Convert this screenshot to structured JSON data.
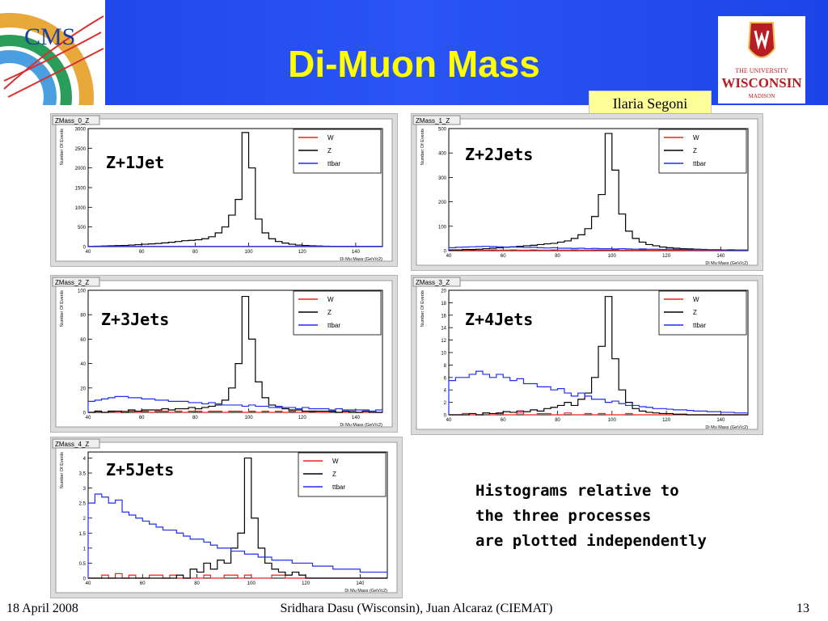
{
  "slide": {
    "title": "Di-Muon Mass",
    "author": "Ilaria Segoni",
    "note_lines": [
      "Histograms relative to",
      "the three processes",
      "are plotted independently"
    ],
    "footer": {
      "date": "18 April 2008",
      "center": "Sridhara Dasu (Wisconsin), Juan Alcaraz (CIEMAT)",
      "page": "13"
    },
    "logos": {
      "cms_text": "CMS",
      "wisconsin": [
        "THE UNIVERSITY",
        "WISCONSIN",
        "MADISON"
      ]
    },
    "colors": {
      "banner": "#2a55f4",
      "title": "#ffff00",
      "author_box": "#ffff99",
      "W": "#e8231f",
      "Z": "#000000",
      "ttbar": "#1f2ff0"
    }
  },
  "chart_data": [
    {
      "type": "histogram",
      "panel_title": "ZMass_0_Z",
      "label": "Z+1Jet",
      "xlabel": "Di Mu Mass (GeV/c2)",
      "ylabel": "Number Of Events",
      "xlim": [
        40,
        150
      ],
      "ylim": [
        0,
        3000
      ],
      "x_ticks": [
        40,
        60,
        80,
        100,
        120,
        140
      ],
      "y_ticks": [
        0,
        500,
        1000,
        1500,
        2000,
        2500,
        3000
      ],
      "legend": [
        "W",
        "Z",
        "ttbar"
      ],
      "bins": {
        "start": 40,
        "width": 2.5
      },
      "series": [
        {
          "name": "W",
          "values": [
            0,
            0,
            0,
            0,
            0,
            0,
            0,
            0,
            0,
            0,
            0,
            0,
            0,
            0,
            0,
            0,
            0,
            0,
            0,
            0,
            0,
            0,
            0,
            0,
            0,
            0,
            0,
            0,
            0,
            0,
            0,
            0,
            0,
            0,
            0,
            0,
            0,
            0,
            0,
            0,
            0,
            0,
            0,
            0
          ]
        },
        {
          "name": "Z",
          "values": [
            5,
            10,
            15,
            20,
            25,
            30,
            40,
            50,
            60,
            70,
            80,
            95,
            110,
            130,
            150,
            160,
            175,
            200,
            250,
            350,
            500,
            800,
            1200,
            2900,
            2000,
            700,
            350,
            200,
            130,
            90,
            60,
            40,
            30,
            20,
            15,
            10,
            8,
            5,
            5,
            5,
            5,
            5,
            5,
            5
          ]
        },
        {
          "name": "ttbar",
          "values": [
            5,
            5,
            5,
            5,
            5,
            5,
            5,
            5,
            5,
            5,
            5,
            5,
            5,
            5,
            5,
            5,
            5,
            5,
            5,
            5,
            5,
            5,
            5,
            5,
            5,
            5,
            5,
            5,
            5,
            5,
            5,
            5,
            5,
            5,
            5,
            5,
            5,
            5,
            5,
            5,
            5,
            5,
            5,
            5
          ]
        }
      ]
    },
    {
      "type": "histogram",
      "panel_title": "ZMass_1_Z",
      "label": "Z+2Jets",
      "xlabel": "Di Mu Mass (GeV/c2)",
      "ylabel": "Number Of Events",
      "xlim": [
        40,
        150
      ],
      "ylim": [
        0,
        500
      ],
      "x_ticks": [
        40,
        60,
        80,
        100,
        120,
        140
      ],
      "y_ticks": [
        0,
        100,
        200,
        300,
        400,
        500
      ],
      "legend": [
        "W",
        "Z",
        "ttbar"
      ],
      "bins": {
        "start": 40,
        "width": 2.5
      },
      "series": [
        {
          "name": "W",
          "values": [
            2,
            2,
            2,
            3,
            2,
            2,
            3,
            2,
            2,
            3,
            2,
            2,
            3,
            2,
            2,
            3,
            2,
            2,
            3,
            2,
            2,
            3,
            3,
            3,
            3,
            2,
            2,
            2,
            3,
            2,
            2,
            2,
            2,
            2,
            2,
            2,
            2,
            2,
            2,
            2,
            2,
            2,
            2,
            2
          ]
        },
        {
          "name": "Z",
          "values": [
            3,
            3,
            5,
            5,
            6,
            8,
            10,
            12,
            14,
            16,
            18,
            20,
            22,
            25,
            28,
            30,
            35,
            40,
            50,
            65,
            90,
            140,
            230,
            480,
            330,
            150,
            80,
            50,
            35,
            25,
            20,
            15,
            12,
            10,
            8,
            7,
            6,
            5,
            4,
            4,
            3,
            3,
            3,
            3
          ]
        },
        {
          "name": "ttbar",
          "values": [
            12,
            14,
            15,
            16,
            17,
            18,
            17,
            16,
            15,
            15,
            14,
            13,
            14,
            12,
            11,
            12,
            10,
            10,
            9,
            10,
            8,
            9,
            8,
            8,
            7,
            8,
            7,
            6,
            7,
            6,
            6,
            5,
            6,
            5,
            5,
            4,
            5,
            4,
            4,
            4,
            3,
            4,
            3,
            3
          ]
        }
      ]
    },
    {
      "type": "histogram",
      "panel_title": "ZMass_2_Z",
      "label": "Z+3Jets",
      "xlabel": "Di Mu Mass (GeV/c2)",
      "ylabel": "Number Of Events",
      "xlim": [
        40,
        150
      ],
      "ylim": [
        0,
        100
      ],
      "x_ticks": [
        40,
        60,
        80,
        100,
        120,
        140
      ],
      "y_ticks": [
        0,
        20,
        40,
        60,
        80,
        100
      ],
      "legend": [
        "W",
        "Z",
        "ttbar"
      ],
      "bins": {
        "start": 40,
        "width": 2.5
      },
      "series": [
        {
          "name": "W",
          "values": [
            0,
            1,
            0,
            1,
            0,
            1,
            1,
            0,
            1,
            0,
            1,
            1,
            0,
            1,
            0,
            1,
            1,
            0,
            1,
            1,
            0,
            1,
            1,
            0,
            1,
            0,
            1,
            0,
            1,
            0,
            1,
            0,
            0,
            1,
            0,
            0,
            1,
            0,
            0,
            1,
            0,
            0,
            1,
            0
          ]
        },
        {
          "name": "Z",
          "values": [
            0,
            1,
            0,
            1,
            1,
            0,
            2,
            1,
            2,
            2,
            2,
            3,
            2,
            3,
            3,
            4,
            3,
            4,
            5,
            6,
            10,
            20,
            40,
            95,
            60,
            25,
            12,
            6,
            4,
            3,
            2,
            2,
            1,
            1,
            1,
            1,
            1,
            0,
            1,
            0,
            0,
            1,
            0,
            0
          ]
        },
        {
          "name": "ttbar",
          "values": [
            9,
            10,
            11,
            12,
            13,
            13,
            12,
            12,
            11,
            11,
            10,
            10,
            9,
            9,
            9,
            8,
            8,
            7,
            8,
            7,
            6,
            6,
            6,
            5,
            6,
            5,
            5,
            4,
            5,
            4,
            4,
            3,
            4,
            3,
            3,
            3,
            2,
            3,
            2,
            2,
            2,
            2,
            1,
            2
          ]
        }
      ]
    },
    {
      "type": "histogram",
      "panel_title": "ZMass_3_Z",
      "label": "Z+4Jets",
      "xlabel": "Di Mu Mass (GeV/c2)",
      "ylabel": "Number Of Events",
      "xlim": [
        40,
        150
      ],
      "ylim": [
        0,
        20
      ],
      "x_ticks": [
        40,
        60,
        80,
        100,
        120,
        140
      ],
      "y_ticks": [
        0,
        2,
        4,
        6,
        8,
        10,
        12,
        14,
        16,
        18,
        20
      ],
      "legend": [
        "W",
        "Z",
        "ttbar"
      ],
      "bins": {
        "start": 40,
        "width": 2.5
      },
      "series": [
        {
          "name": "W",
          "values": [
            0,
            0,
            0.2,
            0,
            0,
            0.3,
            0,
            0.2,
            0,
            0,
            0.3,
            0,
            0,
            0.2,
            0.2,
            0,
            0,
            0.3,
            0,
            0,
            0.2,
            0,
            0.2,
            0,
            0,
            0,
            0.2,
            0,
            0,
            0,
            0,
            0,
            0,
            0,
            0,
            0,
            0,
            0,
            0,
            0,
            0,
            0,
            0,
            0
          ]
        },
        {
          "name": "Z",
          "values": [
            0,
            0,
            0,
            0.2,
            0,
            0.3,
            0.2,
            0.3,
            0.5,
            0.4,
            0.6,
            0.5,
            0.8,
            0.6,
            1,
            1.2,
            1.5,
            2,
            1.5,
            2.5,
            3.5,
            6,
            11,
            19,
            9,
            4,
            2,
            1,
            0.6,
            0.4,
            0.3,
            0.2,
            0.2,
            0.1,
            0.1,
            0,
            0,
            0,
            0,
            0,
            0,
            0,
            0,
            0
          ]
        },
        {
          "name": "ttbar",
          "values": [
            5.5,
            6,
            6,
            6.5,
            7,
            6.5,
            6,
            6.5,
            6,
            5.5,
            5.8,
            5,
            5,
            4.5,
            4.5,
            4,
            4.2,
            3.5,
            3,
            3.5,
            3,
            2.5,
            2.5,
            2,
            2.2,
            1.8,
            1.5,
            1.5,
            1.3,
            1.2,
            1,
            1,
            0.9,
            0.8,
            0.8,
            0.7,
            0.6,
            0.6,
            0.5,
            0.5,
            0.4,
            0.4,
            0.3,
            0.3
          ]
        }
      ]
    },
    {
      "type": "histogram",
      "panel_title": "ZMass_4_Z",
      "label": "Z+5Jets",
      "xlabel": "Di Mu Mass (GeV/c2)",
      "ylabel": "Number Of Events",
      "xlim": [
        40,
        150
      ],
      "ylim": [
        0,
        4.2
      ],
      "x_ticks": [
        40,
        60,
        80,
        100,
        120,
        140
      ],
      "y_ticks": [
        0,
        0.5,
        1,
        1.5,
        2,
        2.5,
        3,
        3.5,
        4
      ],
      "legend": [
        "W",
        "Z",
        "ttbar"
      ],
      "bins": {
        "start": 40,
        "width": 2.5
      },
      "series": [
        {
          "name": "W",
          "values": [
            0,
            0,
            0.1,
            0,
            0.15,
            0,
            0.1,
            0,
            0,
            0.1,
            0.1,
            0,
            0.1,
            0,
            0,
            0,
            0,
            0.1,
            0,
            0,
            0.1,
            0.1,
            0,
            0.1,
            0,
            0,
            0,
            0.1,
            0.1,
            0,
            0,
            0,
            0,
            0,
            0,
            0,
            0,
            0,
            0,
            0,
            0,
            0,
            0,
            0
          ]
        },
        {
          "name": "Z",
          "values": [
            0,
            0,
            0,
            0,
            0,
            0,
            0,
            0,
            0,
            0,
            0,
            0,
            0,
            0.1,
            0,
            0.3,
            0.2,
            0.5,
            0.3,
            0.6,
            0.5,
            1,
            1.5,
            4,
            2,
            1,
            0.5,
            0.3,
            0.2,
            0.1,
            0.2,
            0.1,
            0,
            0,
            0,
            0,
            0,
            0,
            0,
            0,
            0,
            0,
            0,
            0
          ]
        },
        {
          "name": "ttbar",
          "values": [
            2.5,
            2.8,
            2.7,
            2.5,
            2.6,
            2.2,
            2.1,
            2.0,
            1.9,
            1.8,
            1.7,
            1.6,
            1.6,
            1.5,
            1.4,
            1.3,
            1.3,
            1.2,
            1.1,
            1.0,
            1.0,
            0.9,
            0.9,
            0.8,
            0.8,
            0.7,
            0.7,
            0.6,
            0.6,
            0.6,
            0.5,
            0.5,
            0.5,
            0.4,
            0.4,
            0.4,
            0.3,
            0.3,
            0.3,
            0.3,
            0.2,
            0.2,
            0.2,
            0.2
          ]
        }
      ]
    }
  ]
}
